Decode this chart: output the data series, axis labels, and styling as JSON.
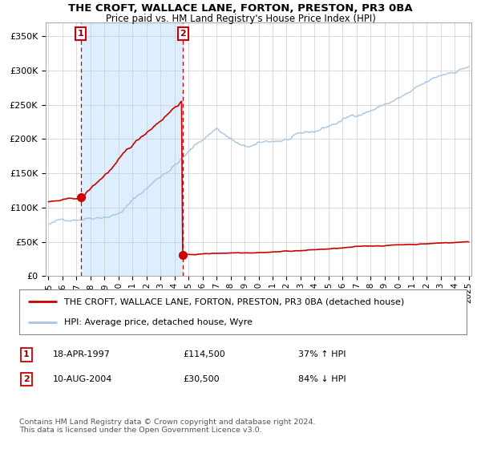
{
  "title": "THE CROFT, WALLACE LANE, FORTON, PRESTON, PR3 0BA",
  "subtitle": "Price paid vs. HM Land Registry's House Price Index (HPI)",
  "legend_line1": "THE CROFT, WALLACE LANE, FORTON, PRESTON, PR3 0BA (detached house)",
  "legend_line2": "HPI: Average price, detached house, Wyre",
  "annotation1_date": "18-APR-1997",
  "annotation1_price": "£114,500",
  "annotation1_hpi": "37% ↑ HPI",
  "annotation2_date": "10-AUG-2004",
  "annotation2_price": "£30,500",
  "annotation2_hpi": "84% ↓ HPI",
  "footer": "Contains HM Land Registry data © Crown copyright and database right 2024.\nThis data is licensed under the Open Government Licence v3.0.",
  "hpi_line_color": "#a8c4e0",
  "price_line_color": "#cc0000",
  "dot_color": "#cc0000",
  "vline_color": "#cc0000",
  "shade_color": "#ddeeff",
  "background_color": "#ffffff",
  "grid_color": "#cccccc",
  "box_edge_color": "#cc0000",
  "point1_x": 1997.3,
  "point1_y": 114500,
  "point2_x": 2004.6,
  "point2_y": 30500,
  "ylim": [
    0,
    370000
  ],
  "xlim": [
    1994.8,
    2025.2
  ]
}
